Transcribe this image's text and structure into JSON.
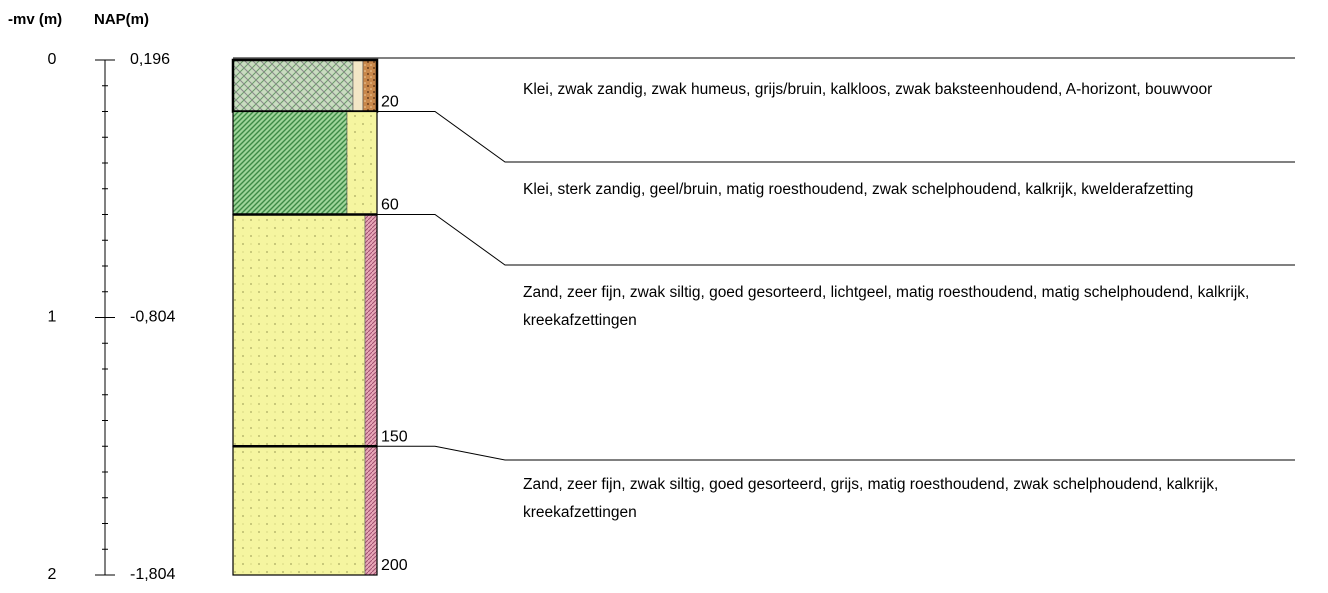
{
  "headers": {
    "mv": "-mv (m)",
    "nap": "NAP(m)"
  },
  "scale": {
    "mv_ticks": [
      0,
      1,
      2
    ],
    "nap_labels": [
      "0,196",
      "-0,804",
      "-1,804"
    ]
  },
  "layers": [
    {
      "bottom": 20,
      "description": "Klei, zwak zandig, zwak humeus, grijs/bruin, kalkloos, zwak baksteenhoudend, A-horizont, bouwvoor"
    },
    {
      "bottom": 60,
      "description": "Klei, sterk zandig, geel/bruin, matig roesthoudend, zwak schelphoudend, kalkrijk, kwelderafzetting"
    },
    {
      "bottom": 150,
      "description": "Zand, zeer fijn, zwak siltig, goed gesorteerd, lichtgeel, matig roesthoudend, matig schelphoudend, kalkrijk, kreekafzettingen"
    },
    {
      "bottom": 200,
      "description": "Zand, zeer fijn, zwak siltig, goed gesorteerd, grijs, matig roesthoudend, zwak schelphoudend, kalkrijk, kreekafzettingen"
    }
  ]
}
